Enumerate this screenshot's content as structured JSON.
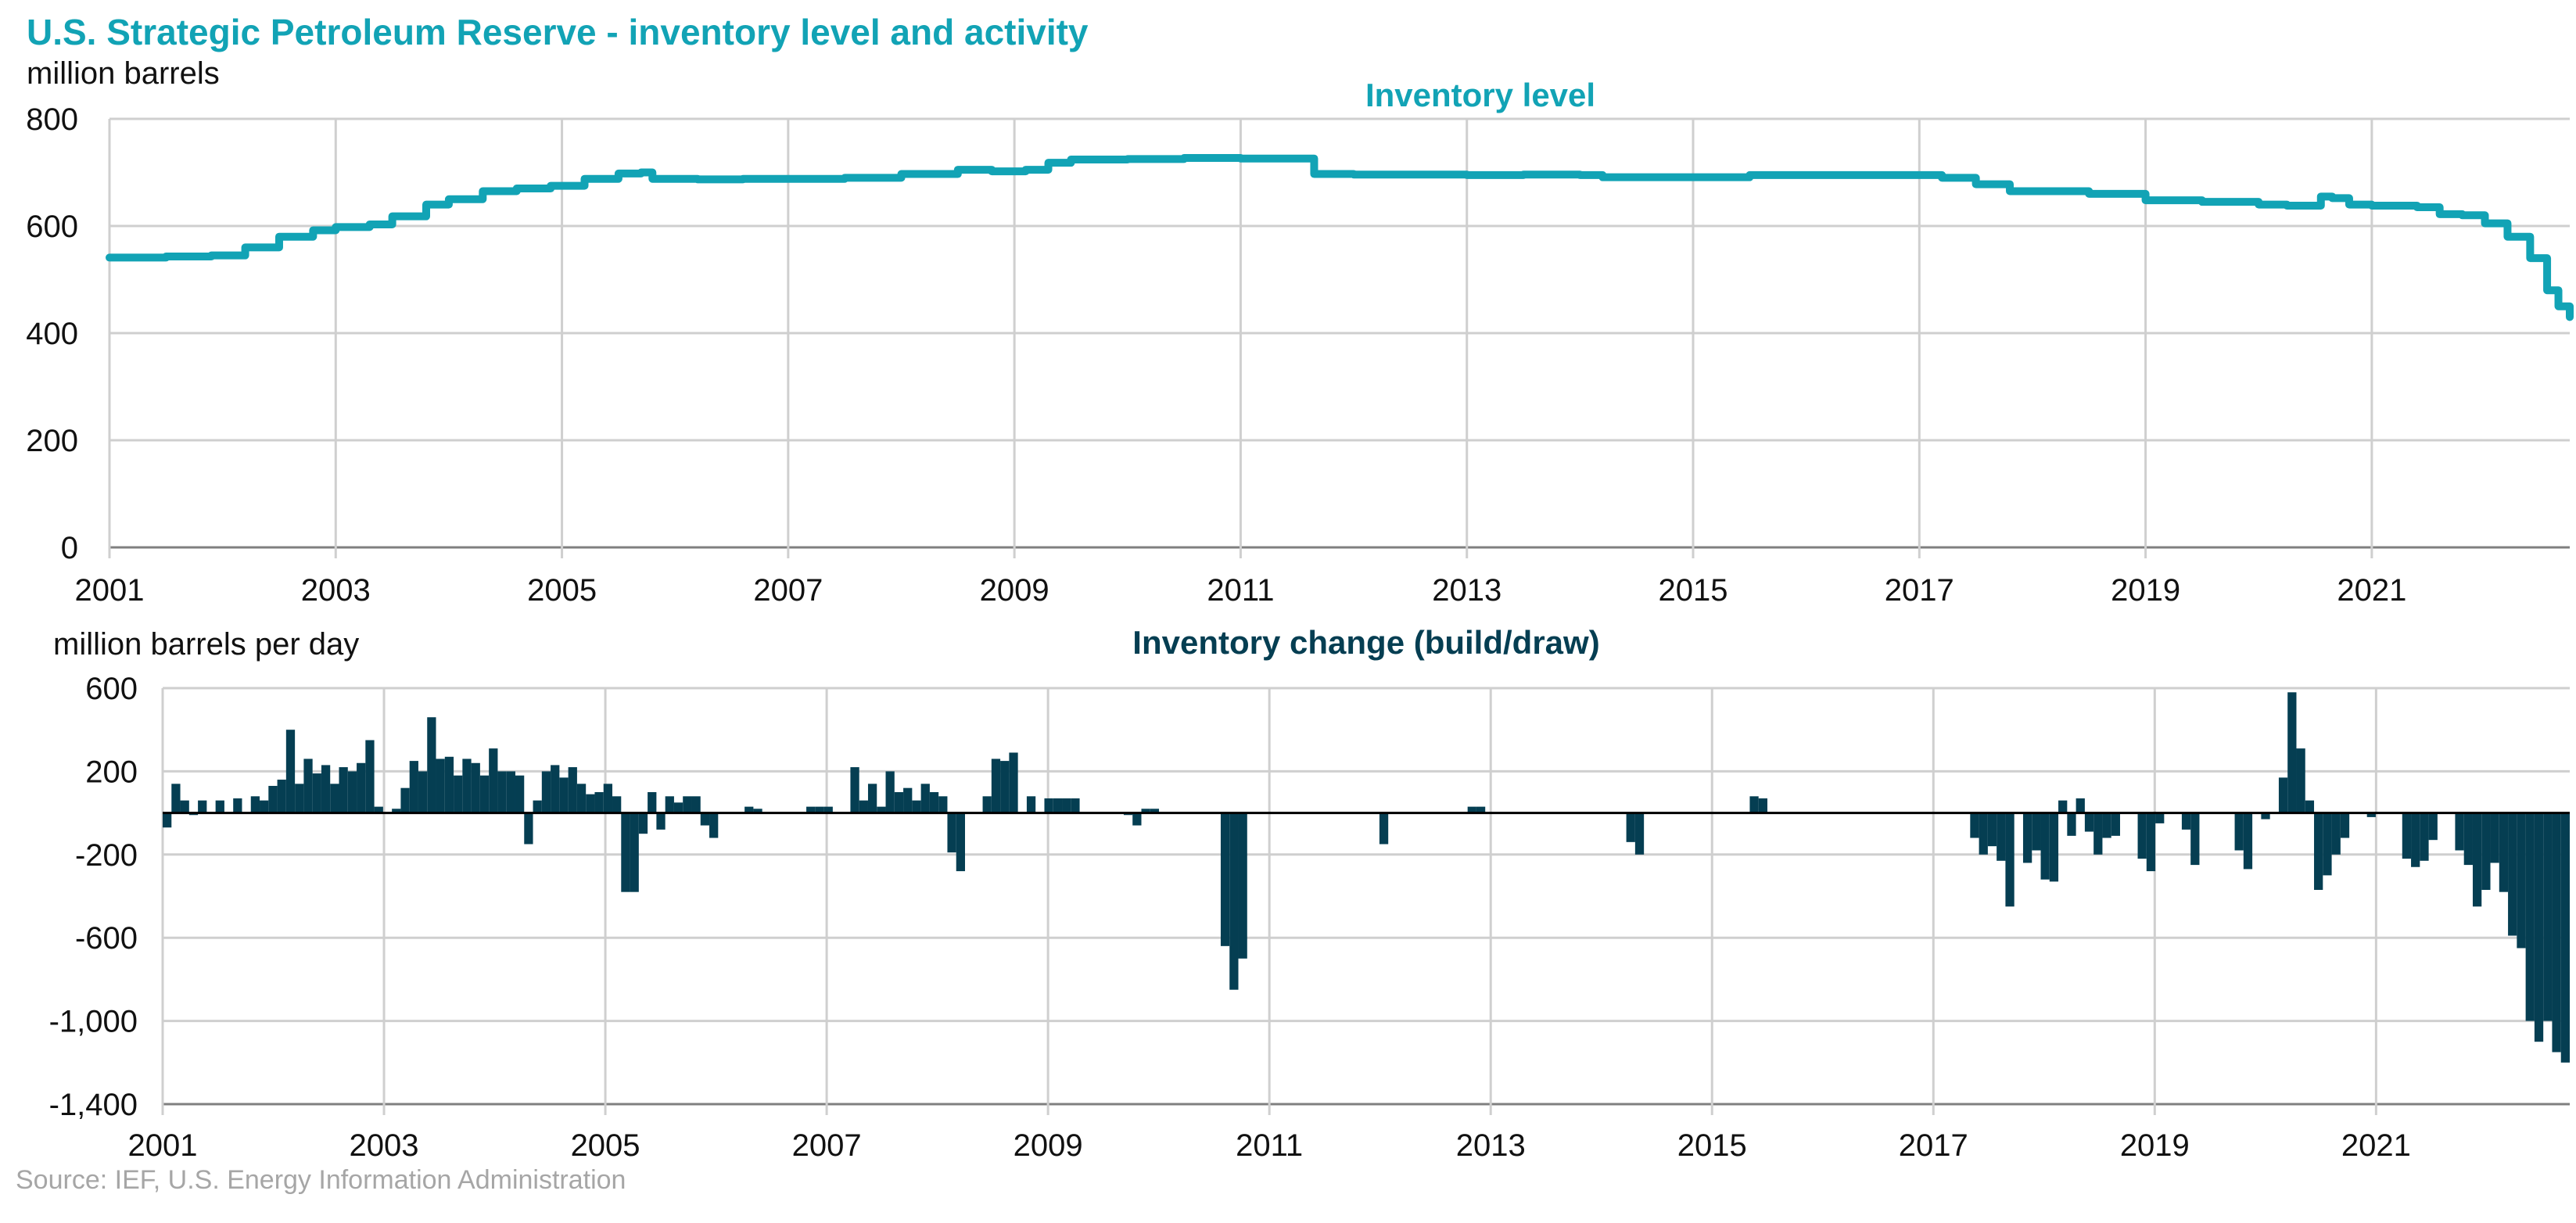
{
  "title": "U.S. Strategic Petroleum Reserve - inventory level and activity",
  "source": "Source: IEF, U.S. Energy Information Administration",
  "colors": {
    "line": "#12a3b5",
    "bar": "#053e52",
    "grid": "#cfcfcf",
    "title": "#12a3b5",
    "bar_title": "#053e52"
  },
  "chart_data": [
    {
      "type": "line",
      "title": "Inventory level",
      "ylabel": "million barrels",
      "xlim": [
        2001,
        2022.75
      ],
      "ylim": [
        0,
        800
      ],
      "yticks": [
        0,
        200,
        400,
        600,
        800
      ],
      "ytick_labels": [
        "0",
        "200",
        "400",
        "600",
        "800"
      ],
      "xticks": [
        2001,
        2003,
        2005,
        2007,
        2009,
        2011,
        2013,
        2015,
        2017,
        2019,
        2021
      ],
      "xtick_labels": [
        "2001",
        "2003",
        "2005",
        "2007",
        "2009",
        "2011",
        "2013",
        "2015",
        "2017",
        "2019",
        "2021"
      ],
      "x": [
        2001.0,
        2001.5,
        2001.9,
        2002.2,
        2002.5,
        2002.8,
        2003.0,
        2003.3,
        2003.5,
        2003.8,
        2004.0,
        2004.3,
        2004.6,
        2004.9,
        2005.2,
        2005.5,
        2005.7,
        2005.8,
        2006.2,
        2006.6,
        2007.0,
        2007.5,
        2008.0,
        2008.5,
        2008.8,
        2009.1,
        2009.3,
        2009.5,
        2010.0,
        2010.5,
        2011.0,
        2011.5,
        2011.65,
        2012.0,
        2012.5,
        2013.0,
        2013.5,
        2014.0,
        2014.2,
        2014.5,
        2015.0,
        2015.5,
        2016.0,
        2016.5,
        2017.0,
        2017.2,
        2017.5,
        2017.8,
        2018.0,
        2018.5,
        2019.0,
        2019.5,
        2020.0,
        2020.25,
        2020.4,
        2020.55,
        2020.65,
        2020.8,
        2021.0,
        2021.4,
        2021.6,
        2021.8,
        2022.0,
        2022.2,
        2022.4,
        2022.55,
        2022.65,
        2022.75
      ],
      "values": [
        541,
        543,
        545,
        560,
        580,
        592,
        598,
        603,
        618,
        640,
        650,
        665,
        670,
        675,
        688,
        698,
        700,
        688,
        687,
        688,
        688,
        690,
        697,
        705,
        702,
        705,
        718,
        724,
        725,
        727,
        726,
        726,
        697,
        696,
        696,
        695,
        696,
        695,
        691,
        691,
        691,
        695,
        695,
        695,
        695,
        690,
        678,
        665,
        665,
        660,
        648,
        645,
        640,
        638,
        638,
        655,
        652,
        640,
        638,
        635,
        622,
        620,
        605,
        580,
        540,
        480,
        450,
        430
      ]
    },
    {
      "type": "bar",
      "title": "Inventory change (build/draw)",
      "ylabel": "million barrels per day",
      "xlim": [
        2001,
        2022.75
      ],
      "ylim": [
        -1400,
        600
      ],
      "yticks": [
        -1400,
        -1000,
        -600,
        -200,
        200,
        600
      ],
      "ytick_labels": [
        "-1,400",
        "-1,000",
        "-600",
        "-200",
        "200",
        "600"
      ],
      "xticks": [
        2001,
        2003,
        2005,
        2007,
        2009,
        2011,
        2013,
        2015,
        2017,
        2019,
        2021
      ],
      "xtick_labels": [
        "2001",
        "2003",
        "2005",
        "2007",
        "2009",
        "2011",
        "2013",
        "2015",
        "2017",
        "2019",
        "2021"
      ],
      "values": [
        -70,
        140,
        60,
        -10,
        60,
        0,
        60,
        0,
        70,
        0,
        80,
        60,
        130,
        160,
        400,
        140,
        260,
        190,
        230,
        140,
        220,
        200,
        240,
        350,
        30,
        0,
        20,
        120,
        250,
        200,
        460,
        260,
        270,
        180,
        260,
        240,
        180,
        310,
        200,
        200,
        180,
        -150,
        60,
        200,
        230,
        170,
        220,
        140,
        90,
        100,
        140,
        80,
        -380,
        -380,
        -100,
        100,
        -80,
        80,
        50,
        80,
        80,
        -60,
        -120,
        0,
        0,
        0,
        30,
        20,
        0,
        0,
        0,
        0,
        0,
        30,
        30,
        30,
        0,
        0,
        220,
        60,
        140,
        30,
        200,
        100,
        120,
        60,
        140,
        100,
        80,
        -190,
        -280,
        0,
        0,
        80,
        260,
        250,
        290,
        0,
        80,
        0,
        70,
        70,
        70,
        70,
        0,
        0,
        0,
        0,
        0,
        -10,
        -60,
        20,
        20,
        0,
        0,
        0,
        0,
        0,
        0,
        0,
        -640,
        -850,
        -700,
        0,
        0,
        0,
        0,
        0,
        0,
        0,
        0,
        0,
        0,
        0,
        0,
        0,
        0,
        0,
        -150,
        0,
        0,
        0,
        0,
        0,
        0,
        0,
        0,
        0,
        30,
        30,
        0,
        0,
        0,
        0,
        0,
        0,
        0,
        0,
        0,
        0,
        0,
        0,
        0,
        0,
        0,
        0,
        -140,
        -200,
        0,
        0,
        0,
        0,
        0,
        0,
        0,
        0,
        0,
        0,
        0,
        0,
        80,
        70,
        0,
        0,
        0,
        0,
        0,
        0,
        0,
        0,
        0,
        0,
        0,
        0,
        0,
        0,
        0,
        0,
        0,
        0,
        0,
        0,
        0,
        0,
        0,
        -120,
        -200,
        -160,
        -230,
        -450,
        0,
        -240,
        -180,
        -320,
        -330,
        60,
        -110,
        70,
        -90,
        -200,
        -120,
        -110,
        0,
        0,
        -220,
        -280,
        -50,
        0,
        0,
        -80,
        -250,
        0,
        0,
        0,
        0,
        -180,
        -270,
        0,
        -30,
        0,
        170,
        580,
        310,
        60,
        -370,
        -300,
        -200,
        -120,
        0,
        0,
        -20,
        0,
        0,
        0,
        -220,
        -260,
        -230,
        -130,
        0,
        0,
        -180,
        -250,
        -450,
        -370,
        -240,
        -380,
        -590,
        -650,
        -1000,
        -1100,
        -1000,
        -1150,
        -1200
      ]
    }
  ]
}
